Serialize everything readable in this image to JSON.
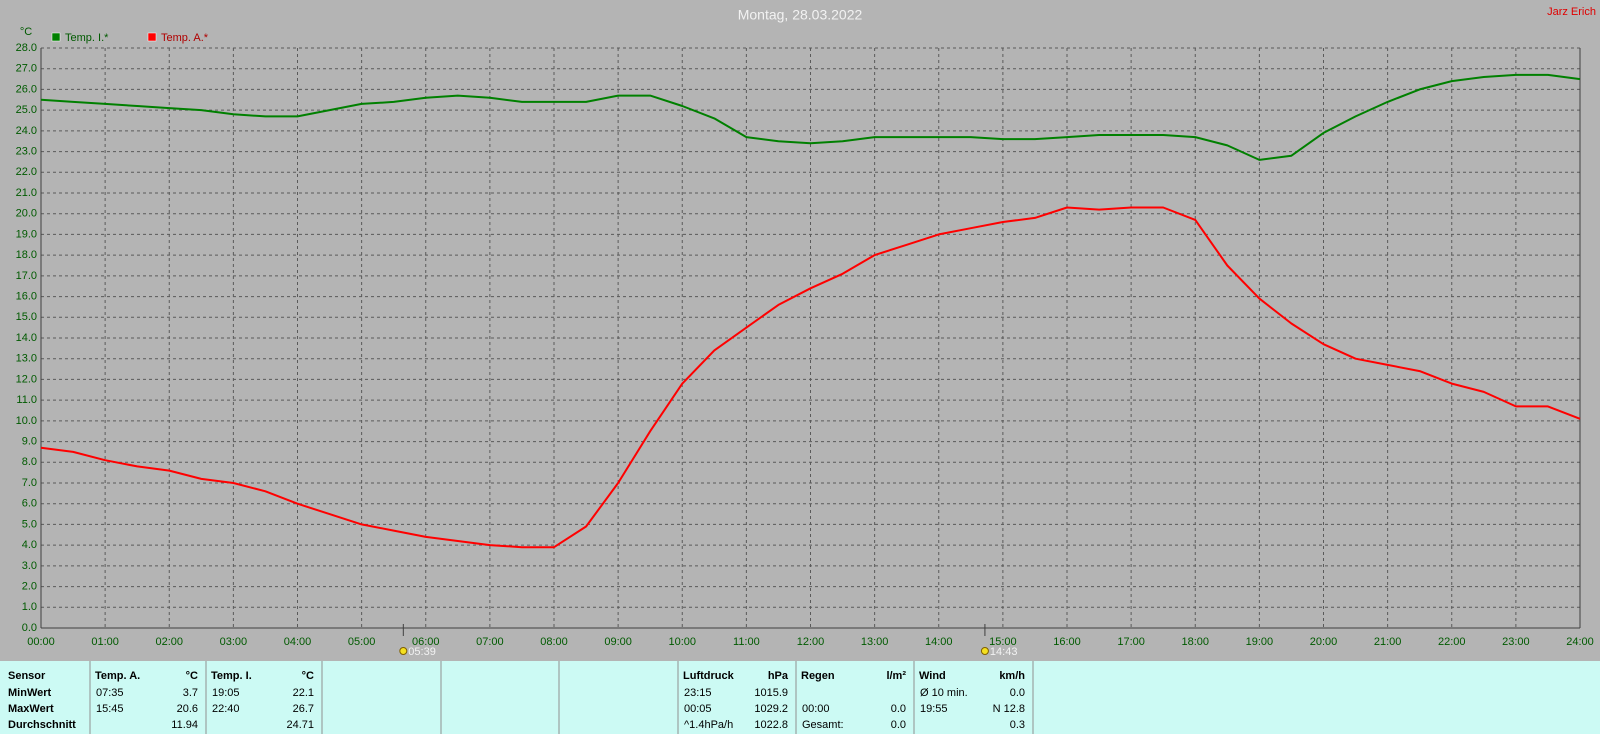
{
  "chart_data": {
    "type": "line",
    "title": "Montag, 28.03.2022",
    "author": "Jarz Erich",
    "y_label": "°C",
    "x": [
      0,
      0.5,
      1,
      1.5,
      2,
      2.5,
      3,
      3.5,
      4,
      4.5,
      5,
      5.5,
      6,
      6.5,
      7,
      7.5,
      8,
      8.5,
      9,
      9.5,
      10,
      10.5,
      11,
      11.5,
      12,
      12.5,
      13,
      13.5,
      14,
      14.5,
      15,
      15.5,
      16,
      16.5,
      17,
      17.5,
      18,
      18.5,
      19,
      19.5,
      20,
      20.5,
      21,
      21.5,
      22,
      22.5,
      23,
      23.5,
      24
    ],
    "series": [
      {
        "name": "Temp. I.*",
        "color": "#008000",
        "values": [
          25.5,
          25.4,
          25.3,
          25.2,
          25.1,
          25.0,
          24.8,
          24.7,
          24.7,
          25.0,
          25.3,
          25.4,
          25.6,
          25.7,
          25.6,
          25.4,
          25.4,
          25.4,
          25.7,
          25.7,
          25.2,
          24.6,
          23.7,
          23.5,
          23.4,
          23.5,
          23.7,
          23.7,
          23.7,
          23.7,
          23.6,
          23.6,
          23.7,
          23.8,
          23.8,
          23.8,
          23.7,
          23.3,
          22.6,
          22.8,
          23.9,
          24.7,
          25.4,
          26.0,
          26.4,
          26.6,
          26.7,
          26.7,
          26.5
        ]
      },
      {
        "name": "Temp. A.*",
        "color": "#ff0000",
        "values": [
          8.7,
          8.5,
          8.1,
          7.8,
          7.6,
          7.2,
          7.0,
          6.6,
          6.0,
          5.5,
          5.0,
          4.7,
          4.4,
          4.2,
          4.0,
          3.9,
          3.9,
          4.9,
          7.0,
          9.5,
          11.8,
          13.4,
          14.5,
          15.6,
          16.4,
          17.1,
          18.0,
          18.5,
          19.0,
          19.3,
          19.6,
          19.8,
          20.3,
          20.2,
          20.3,
          20.3,
          19.7,
          17.5,
          15.9,
          14.7,
          13.7,
          13.0,
          12.7,
          12.4,
          11.8,
          11.4,
          10.7,
          10.7,
          10.1
        ]
      }
    ],
    "xlim": [
      0,
      24
    ],
    "xticks": [
      {
        "value": 0,
        "label": "00:00"
      },
      {
        "value": 1,
        "label": "01:00"
      },
      {
        "value": 2,
        "label": "02:00"
      },
      {
        "value": 3,
        "label": "03:00"
      },
      {
        "value": 4,
        "label": "04:00"
      },
      {
        "value": 5,
        "label": "05:00"
      },
      {
        "value": 6,
        "label": "06:00"
      },
      {
        "value": 7,
        "label": "07:00"
      },
      {
        "value": 8,
        "label": "08:00"
      },
      {
        "value": 9,
        "label": "09:00"
      },
      {
        "value": 10,
        "label": "10:00"
      },
      {
        "value": 11,
        "label": "11:00"
      },
      {
        "value": 12,
        "label": "12:00"
      },
      {
        "value": 13,
        "label": "13:00"
      },
      {
        "value": 14,
        "label": "14:00"
      },
      {
        "value": 15,
        "label": "15:00"
      },
      {
        "value": 16,
        "label": "16:00"
      },
      {
        "value": 17,
        "label": "17:00"
      },
      {
        "value": 18,
        "label": "18:00"
      },
      {
        "value": 19,
        "label": "19:00"
      },
      {
        "value": 20,
        "label": "20:00"
      },
      {
        "value": 21,
        "label": "21:00"
      },
      {
        "value": 22,
        "label": "22:00"
      },
      {
        "value": 23,
        "label": "23:00"
      },
      {
        "value": 24,
        "label": "24:00"
      }
    ],
    "ylim": [
      0,
      28
    ],
    "yticks": [
      {
        "value": 0,
        "label": "0.0"
      },
      {
        "value": 1,
        "label": "1.0"
      },
      {
        "value": 2,
        "label": "2.0"
      },
      {
        "value": 3,
        "label": "3.0"
      },
      {
        "value": 4,
        "label": "4.0"
      },
      {
        "value": 5,
        "label": "5.0"
      },
      {
        "value": 6,
        "label": "6.0"
      },
      {
        "value": 7,
        "label": "7.0"
      },
      {
        "value": 8,
        "label": "8.0"
      },
      {
        "value": 9,
        "label": "9.0"
      },
      {
        "value": 10,
        "label": "10.0"
      },
      {
        "value": 11,
        "label": "11.0"
      },
      {
        "value": 12,
        "label": "12.0"
      },
      {
        "value": 13,
        "label": "13.0"
      },
      {
        "value": 14,
        "label": "14.0"
      },
      {
        "value": 15,
        "label": "15.0"
      },
      {
        "value": 16,
        "label": "16.0"
      },
      {
        "value": 17,
        "label": "17.0"
      },
      {
        "value": 18,
        "label": "18.0"
      },
      {
        "value": 19,
        "label": "19.0"
      },
      {
        "value": 20,
        "label": "20.0"
      },
      {
        "value": 21,
        "label": "21.0"
      },
      {
        "value": 22,
        "label": "22.0"
      },
      {
        "value": 23,
        "label": "23.0"
      },
      {
        "value": 24,
        "label": "24.0"
      },
      {
        "value": 25,
        "label": "25.0"
      },
      {
        "value": 26,
        "label": "26.0"
      },
      {
        "value": 27,
        "label": "27.0"
      },
      {
        "value": 28,
        "label": "28.0"
      }
    ],
    "grid": true,
    "sun_events": [
      {
        "value": 5.65,
        "label": "05:39"
      },
      {
        "value": 14.72,
        "label": "14:43"
      }
    ]
  },
  "table": {
    "row_labels": [
      "Sensor",
      "MinWert",
      "MaxWert",
      "Durchschnitt"
    ],
    "panels": [
      {
        "name": "Temp. A.",
        "unit": "°C",
        "rows": [
          [
            "07:35",
            "3.7"
          ],
          [
            "15:45",
            "20.6"
          ],
          [
            null,
            "11.94"
          ]
        ]
      },
      {
        "name": "Temp. I.",
        "unit": "°C",
        "rows": [
          [
            "19:05",
            "22.1"
          ],
          [
            "22:40",
            "26.7"
          ],
          [
            null,
            "24.71"
          ]
        ]
      },
      {
        "name": "Luftdruck",
        "unit": "hPa",
        "rows": [
          [
            "23:15",
            "1015.9"
          ],
          [
            "00:05",
            "1029.2"
          ],
          [
            "^1.4hPa/h",
            "1022.8"
          ]
        ]
      },
      {
        "name": "Regen",
        "unit": "l/m²",
        "rows": [
          [
            null,
            null
          ],
          [
            "00:00",
            "0.0"
          ],
          [
            "Gesamt:",
            "0.0"
          ]
        ]
      },
      {
        "name": "Wind",
        "unit": "km/h",
        "rows": [
          [
            "Ø 10 min.",
            "0.0"
          ],
          [
            "19:55",
            "N 12.8"
          ],
          [
            null,
            "0.3"
          ]
        ]
      }
    ]
  }
}
